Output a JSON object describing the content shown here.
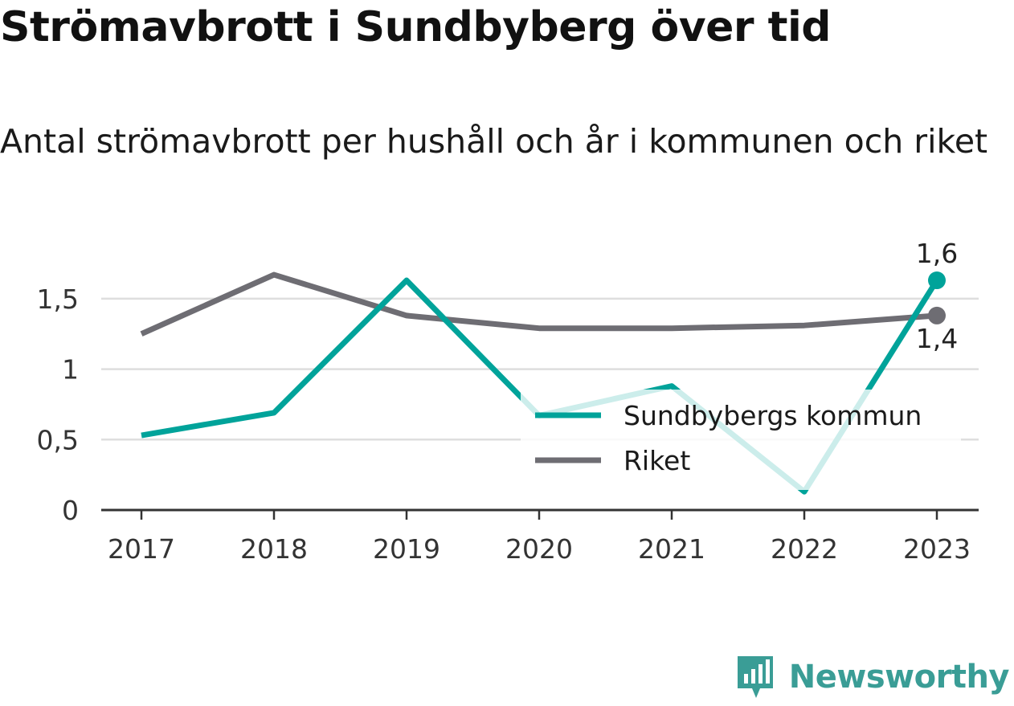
{
  "title": "Strömavbrott i Sundbyberg över tid",
  "subtitle": "Antal strömavbrott per hushåll och år i kommunen och riket",
  "brand": {
    "name": "Newsworthy",
    "icon": "newsworthy-logo-icon",
    "color": "#3a9d96"
  },
  "chart_data": {
    "type": "line",
    "categories": [
      "2017",
      "2018",
      "2019",
      "2020",
      "2021",
      "2022",
      "2023"
    ],
    "ylim": [
      0,
      1.75
    ],
    "yticks": [
      0,
      0.5,
      1,
      1.5
    ],
    "ytick_labels": [
      "0",
      "0,5",
      "1",
      "1,5"
    ],
    "grid": true,
    "legend_position": "inside-right",
    "series": [
      {
        "name": "Sundbybergs kommun",
        "color": "#00a39a",
        "values": [
          0.53,
          0.69,
          1.63,
          0.67,
          0.88,
          0.13,
          1.63
        ],
        "end_label": "1,6"
      },
      {
        "name": "Riket",
        "color": "#6e6d73",
        "values": [
          1.25,
          1.67,
          1.38,
          1.29,
          1.29,
          1.31,
          1.38
        ],
        "end_label": "1,4"
      }
    ]
  }
}
